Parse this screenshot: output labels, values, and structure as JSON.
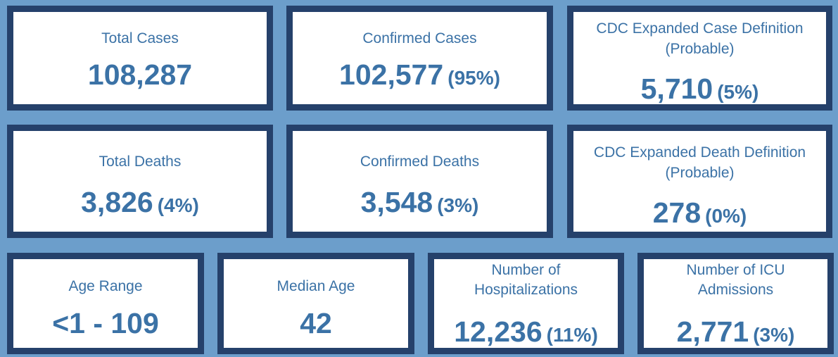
{
  "cards": {
    "total_cases": {
      "label": "Total Cases",
      "value": "108,287",
      "pct": ""
    },
    "confirmed_cases": {
      "label": "Confirmed Cases",
      "value": "102,577",
      "pct": "(95%)"
    },
    "probable_cases": {
      "label_line1": "CDC Expanded Case Definition",
      "label_line2": "(Probable)",
      "value": "5,710",
      "pct": "(5%)"
    },
    "total_deaths": {
      "label": "Total Deaths",
      "value": "3,826",
      "pct": "(4%)"
    },
    "confirmed_deaths": {
      "label": "Confirmed Deaths",
      "value": "3,548",
      "pct": "(3%)"
    },
    "probable_deaths": {
      "label_line1": "CDC Expanded Death Definition",
      "label_line2": "(Probable)",
      "value": "278",
      "pct": "(0%)"
    },
    "age_range": {
      "label": "Age Range",
      "value": "<1 - 109"
    },
    "median_age": {
      "label": "Median Age",
      "value": "42"
    },
    "hospitalizations": {
      "label_line1": "Number of",
      "label_line2": "Hospitalizations",
      "value": "12,236",
      "pct": "(11%)"
    },
    "icu_admissions": {
      "label_line1": "Number of ICU",
      "label_line2": "Admissions",
      "value": "2,771",
      "pct": "(3%)"
    }
  },
  "colors": {
    "background": "#6c9ecb",
    "border": "#25416b",
    "text": "#3b72a6",
    "card": "#ffffff"
  }
}
